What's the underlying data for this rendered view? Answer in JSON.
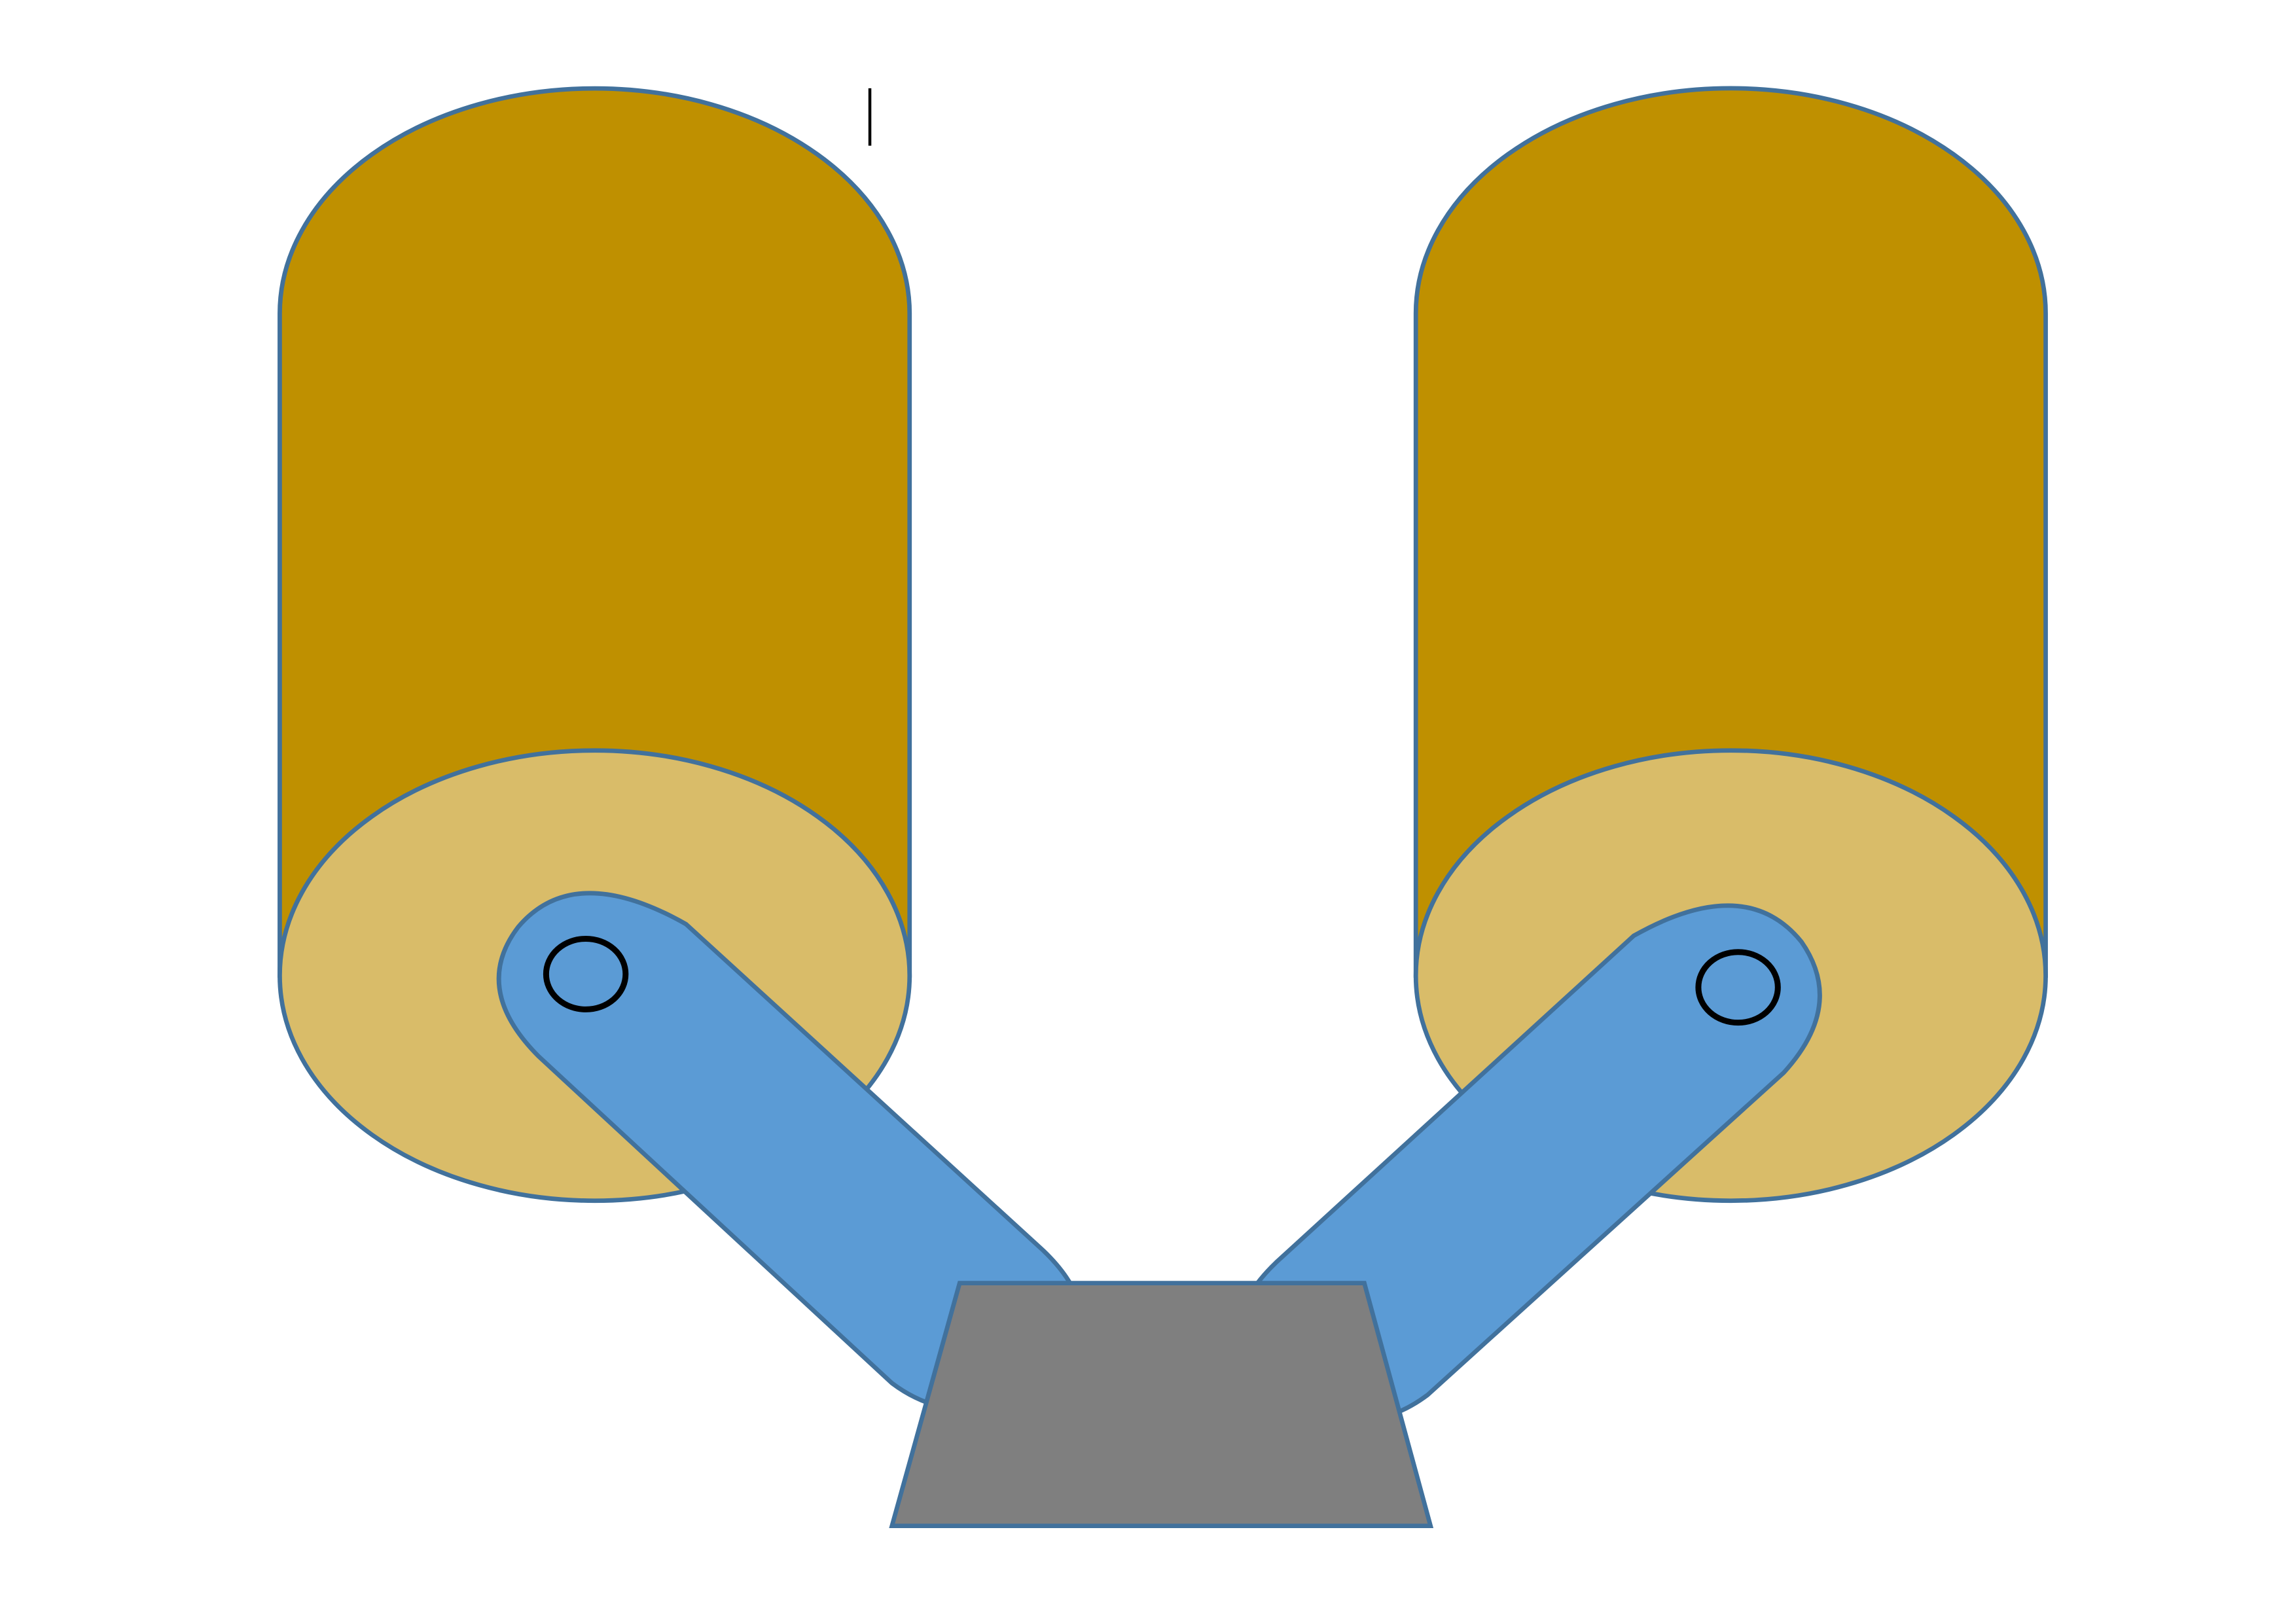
{
  "colors": {
    "background": "#ffffff",
    "cylinder_body": "#bf9000",
    "cylinder_face": "#d9bc69",
    "outline": "#41719c",
    "arm_fill": "#5b9bd5",
    "pivot_stroke": "#000000",
    "base_fill": "#7f7f7f",
    "cursor": "#000000"
  },
  "diagram": {
    "components": [
      {
        "name": "left-cylinder",
        "kind": "cylinder"
      },
      {
        "name": "right-cylinder",
        "kind": "cylinder"
      },
      {
        "name": "left-arm",
        "kind": "link-arm",
        "pivot": "left-pivot"
      },
      {
        "name": "right-arm",
        "kind": "link-arm",
        "pivot": "right-pivot"
      },
      {
        "name": "base-block",
        "kind": "trapezoid"
      }
    ],
    "text_cursor_visible": true
  }
}
